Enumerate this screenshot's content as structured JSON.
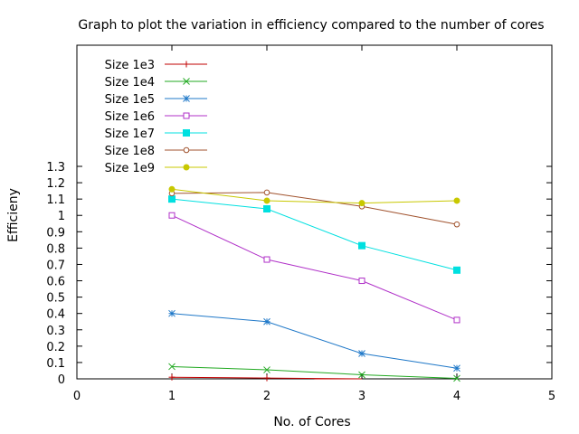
{
  "chart_data": {
    "type": "line",
    "title": "Graph to plot the variation in efficiency compared to the number of cores",
    "xlabel": "No. of Cores",
    "ylabel": "Efficieny",
    "xlim": [
      0,
      5
    ],
    "ylim": [
      0,
      1.3
    ],
    "x_ticks": [
      "0",
      "1",
      "2",
      "3",
      "4",
      "5"
    ],
    "y_ticks": [
      "0",
      "0.1",
      "0.2",
      "0.3",
      "0.4",
      "0.5",
      "0.6",
      "0.7",
      "0.8",
      "0.9",
      "1",
      "1.1",
      "1.2",
      "1.3"
    ],
    "grid": false,
    "legend_position": "top-left",
    "x": [
      1,
      2,
      3,
      4
    ],
    "series": [
      {
        "name": "Size 1e3",
        "color": "#c00000",
        "marker": "plus",
        "values": [
          0.01,
          0.005,
          0.0,
          null
        ]
      },
      {
        "name": "Size 1e4",
        "color": "#21a921",
        "marker": "cross",
        "values": [
          0.075,
          0.055,
          0.025,
          0.003
        ]
      },
      {
        "name": "Size 1e5",
        "color": "#1f78c8",
        "marker": "star",
        "values": [
          0.4,
          0.35,
          0.155,
          0.065
        ]
      },
      {
        "name": "Size 1e6",
        "color": "#b030c8",
        "marker": "open-square",
        "values": [
          1.0,
          0.73,
          0.6,
          0.36
        ]
      },
      {
        "name": "Size 1e7",
        "color": "#00e0e0",
        "marker": "filled-square",
        "values": [
          1.1,
          1.04,
          0.815,
          0.665
        ]
      },
      {
        "name": "Size 1e8",
        "color": "#a0522d",
        "marker": "open-circle",
        "values": [
          1.135,
          1.14,
          1.055,
          0.945
        ]
      },
      {
        "name": "Size 1e9",
        "color": "#c8c800",
        "marker": "filled-circle",
        "values": [
          1.16,
          1.09,
          1.075,
          1.09
        ]
      }
    ]
  }
}
